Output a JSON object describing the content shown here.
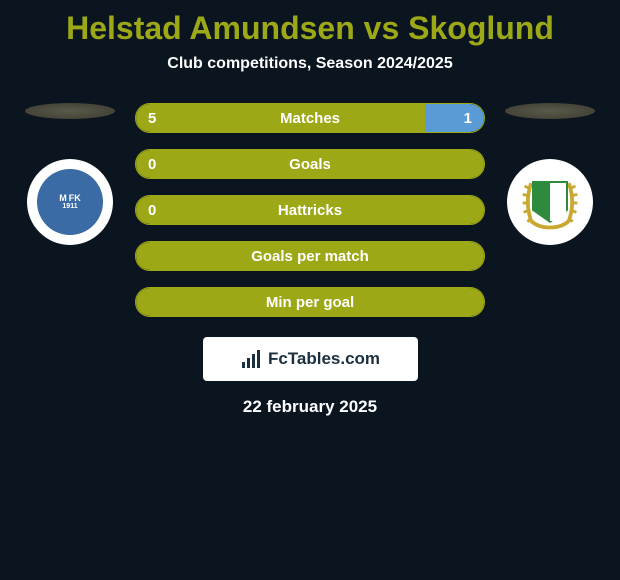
{
  "header": {
    "title": "Helstad Amundsen vs Skoglund",
    "subtitle": "Club competitions, Season 2024/2025"
  },
  "player_left": {
    "crest_bg": "#ffffff",
    "crest_inner_color": "#3a6ba5",
    "crest_text_1": "M",
    "crest_text_2": "FK",
    "crest_text_3": "1911"
  },
  "player_right": {
    "crest_bg": "#ffffff",
    "shield_green": "#2e8b3e",
    "wreath_color": "#c9a830"
  },
  "stats": [
    {
      "label": "Matches",
      "left_value": "5",
      "right_value": "1",
      "left_pct": 83,
      "right_pct": 17,
      "show_left": true,
      "show_right": true
    },
    {
      "label": "Goals",
      "left_value": "0",
      "right_value": "",
      "left_pct": 100,
      "right_pct": 0,
      "show_left": true,
      "show_right": false
    },
    {
      "label": "Hattricks",
      "left_value": "0",
      "right_value": "",
      "left_pct": 100,
      "right_pct": 0,
      "show_left": true,
      "show_right": false
    },
    {
      "label": "Goals per match",
      "left_value": "",
      "right_value": "",
      "left_pct": 100,
      "right_pct": 0,
      "show_left": false,
      "show_right": false
    },
    {
      "label": "Min per goal",
      "left_value": "",
      "right_value": "",
      "left_pct": 100,
      "right_pct": 0,
      "show_left": false,
      "show_right": false
    }
  ],
  "brand": {
    "text": "FcTables.com"
  },
  "date": "22 february 2025",
  "colors": {
    "background": "#0a1520",
    "accent": "#9ca816",
    "text": "#ffffff",
    "right_bar": "#5b9bd5"
  }
}
